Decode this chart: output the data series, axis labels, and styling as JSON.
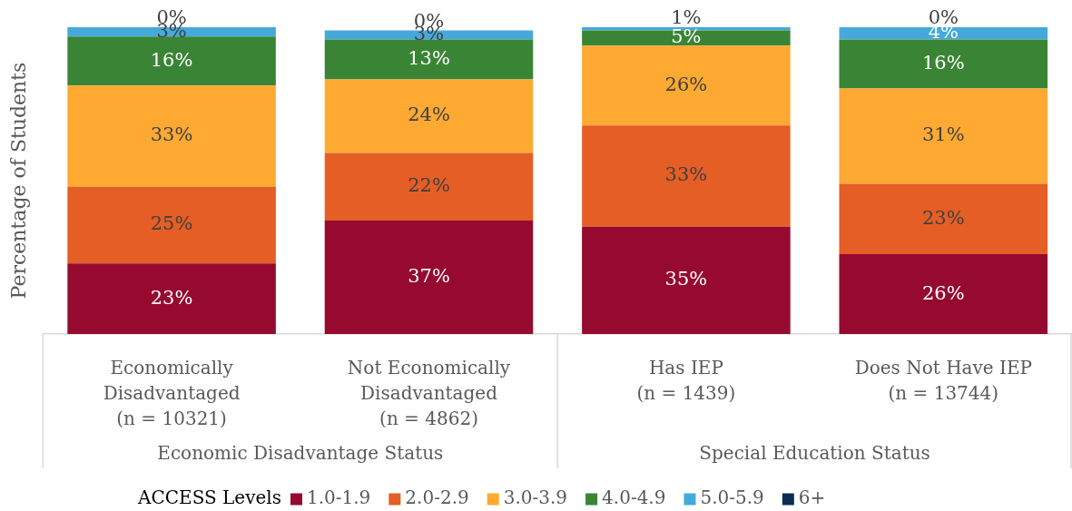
{
  "chart_data": {
    "type": "bar",
    "ylabel": "Percentage of Students",
    "categories": [
      "Economically\nDisadvantaged\n(n = 10321)",
      "Not Economically\nDisadvantaged\n(n = 4862)",
      "Has IEP\n(n = 1439)",
      "Does Not Have IEP\n(n = 13744)"
    ],
    "stacked": true,
    "ylim": [
      0,
      100
    ],
    "tick_labels": "x",
    "legend": "bottom",
    "legend_title": "ACCESS Levels",
    "annotations": [
      "Economic Disadvantage Status",
      "Special Education Status"
    ],
    "series": [
      {
        "name": "1.0-1.9",
        "color": "#960a2f",
        "values": [
          23,
          37,
          35,
          26
        ],
        "value_labels": [
          "23%",
          "37%",
          "35%",
          "26%"
        ]
      },
      {
        "name": "2.0-2.9",
        "color": "#e55e25",
        "values": [
          25,
          22,
          33,
          23
        ],
        "value_labels": [
          "25%",
          "22%",
          "33%",
          "23%"
        ]
      },
      {
        "name": "3.0-3.9",
        "color": "#fda932",
        "values": [
          33,
          24,
          26,
          31
        ],
        "value_labels": [
          "33%",
          "24%",
          "26%",
          "31%"
        ]
      },
      {
        "name": "4.0-4.9",
        "color": "#3a8535",
        "values": [
          16,
          13,
          5,
          16
        ],
        "value_labels": [
          "16%",
          "13%",
          "5%",
          "16%"
        ]
      },
      {
        "name": "5.0-5.9",
        "color": "#45a9dc",
        "values": [
          3,
          3,
          1,
          4
        ],
        "value_labels": [
          "3%",
          "3%",
          "1%",
          "4%"
        ]
      },
      {
        "name": "6+",
        "color": "#0c2c54",
        "values": [
          0,
          0,
          null,
          0
        ],
        "value_labels": [
          "0%",
          "0%",
          null,
          "0%"
        ]
      }
    ]
  }
}
